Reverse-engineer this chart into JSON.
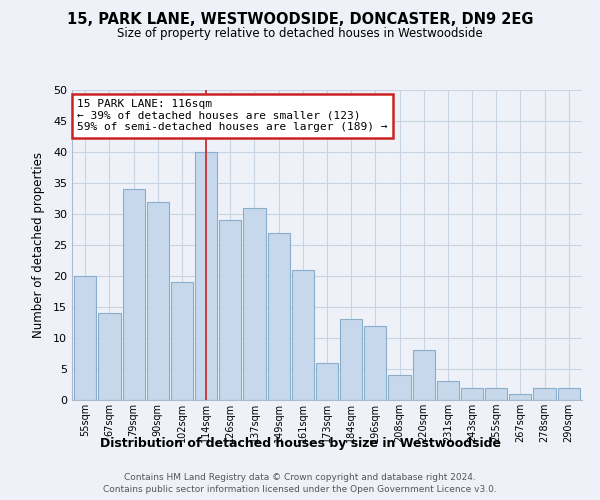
{
  "title": "15, PARK LANE, WESTWOODSIDE, DONCASTER, DN9 2EG",
  "subtitle": "Size of property relative to detached houses in Westwoodside",
  "xlabel": "Distribution of detached houses by size in Westwoodside",
  "ylabel": "Number of detached properties",
  "bar_labels": [
    "55sqm",
    "67sqm",
    "79sqm",
    "90sqm",
    "102sqm",
    "114sqm",
    "126sqm",
    "137sqm",
    "149sqm",
    "161sqm",
    "173sqm",
    "184sqm",
    "196sqm",
    "208sqm",
    "220sqm",
    "231sqm",
    "243sqm",
    "255sqm",
    "267sqm",
    "278sqm",
    "290sqm"
  ],
  "bar_values": [
    20,
    14,
    34,
    32,
    19,
    40,
    29,
    31,
    27,
    21,
    6,
    13,
    12,
    4,
    8,
    3,
    2,
    2,
    1,
    2,
    2
  ],
  "bar_color": "#c8d8ec",
  "bar_edge_color": "#8aadcc",
  "property_line_label": "15 PARK LANE: 116sqm",
  "annotation_line1": "← 39% of detached houses are smaller (123)",
  "annotation_line2": "59% of semi-detached houses are larger (189) →",
  "annotation_box_color": "#ffffff",
  "annotation_box_edge": "#cc2222",
  "property_line_color": "#cc2222",
  "ylim": [
    0,
    50
  ],
  "yticks": [
    0,
    5,
    10,
    15,
    20,
    25,
    30,
    35,
    40,
    45,
    50
  ],
  "grid_color": "#c8d4e4",
  "background_color": "#eef2f8",
  "footer1": "Contains HM Land Registry data © Crown copyright and database right 2024.",
  "footer2": "Contains public sector information licensed under the Open Government Licence v3.0."
}
